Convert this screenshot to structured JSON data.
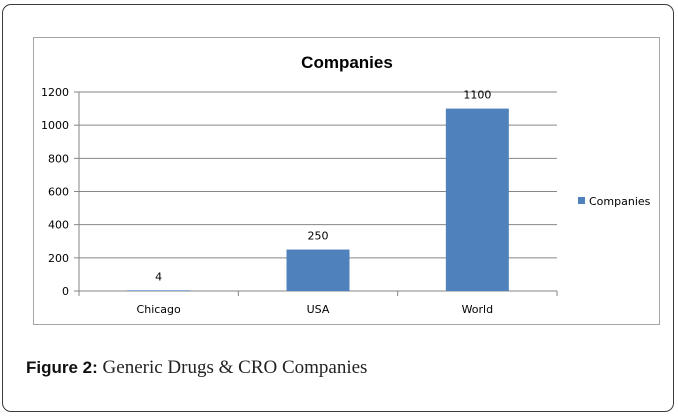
{
  "chart_data": {
    "type": "bar",
    "title": "Companies",
    "categories": [
      "Chicago",
      "USA",
      "World"
    ],
    "series": [
      {
        "name": "Companies",
        "values": [
          4,
          250,
          1100
        ],
        "color": "#4f81bd"
      }
    ],
    "ylim": [
      0,
      1200
    ],
    "yticks": [
      0,
      200,
      400,
      600,
      800,
      1000,
      1200
    ],
    "data_labels": true,
    "grid": true,
    "legend": "right"
  },
  "caption": {
    "label": "Figure 2:",
    "text": "Generic Drugs & CRO Companies"
  }
}
